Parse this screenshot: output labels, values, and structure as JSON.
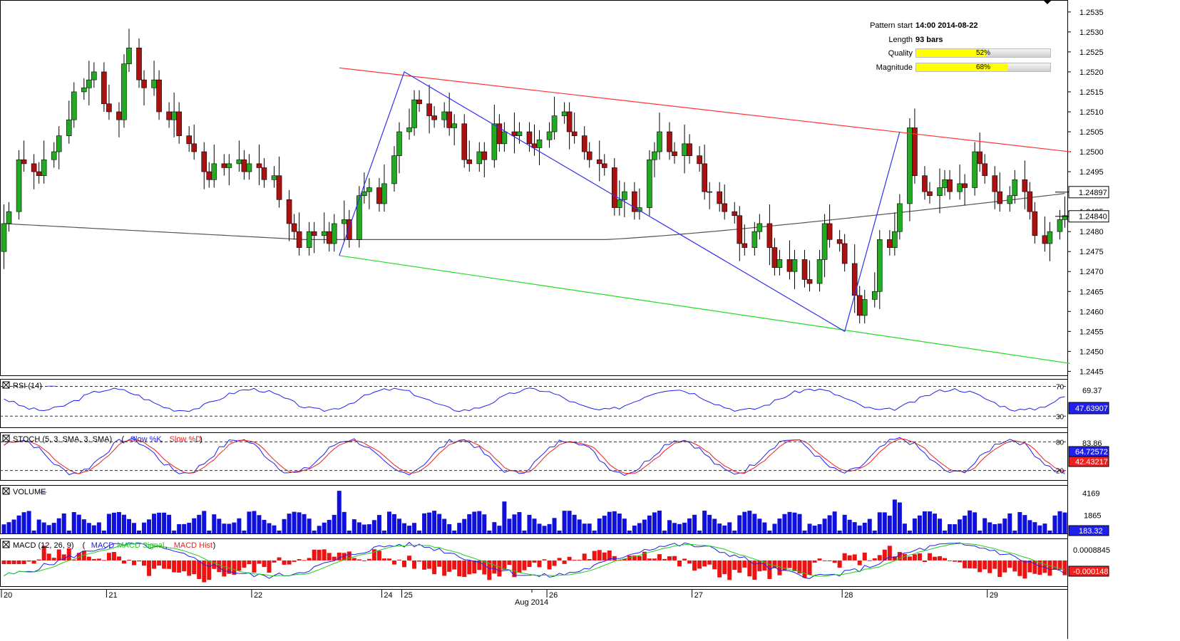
{
  "pattern_info": {
    "start_label": "Pattern start",
    "start_value": "14:00 2014-08-22",
    "length_label": "Length",
    "length_value": "93 bars",
    "quality_label": "Quality",
    "quality_text": "52%",
    "quality_value": 0.52,
    "magnitude_label": "Magnitude",
    "magnitude_text": "68%",
    "magnitude_value": 0.68
  },
  "x_axis": {
    "day_labels": [
      {
        "label": "20",
        "bar": 0
      },
      {
        "label": "21",
        "bar": 21
      },
      {
        "label": "22",
        "bar": 50
      },
      {
        "label": "24",
        "bar": 76
      },
      {
        "label": "25",
        "bar": 80
      },
      {
        "label": "26",
        "bar": 109
      },
      {
        "label": "27",
        "bar": 138
      },
      {
        "label": "28",
        "bar": 168
      },
      {
        "label": "29",
        "bar": 197
      }
    ],
    "month_label": "Aug 2014",
    "month_bar": 106
  },
  "chart_data": [
    {
      "type": "candlestick",
      "name": "price",
      "y_ticks": [
        "1.2535",
        "1.2530",
        "1.2525",
        "1.2520",
        "1.2515",
        "1.2510",
        "1.2505",
        "1.2500",
        "1.2495",
        "1.2490",
        "1.2485",
        "1.2480",
        "1.2475",
        "1.2470",
        "1.2465",
        "1.2460",
        "1.2455",
        "1.2450",
        "1.2445"
      ],
      "ylim": [
        1.2444,
        1.2538
      ],
      "current_price": "1.24840",
      "moving_average_label": "1.24897",
      "closes": [
        1.2482,
        1.2485,
        1.2498,
        1.2497,
        1.2495,
        1.2494,
        1.2498,
        1.25,
        1.2504,
        1.2508,
        1.2515,
        1.2516,
        1.2518,
        1.252,
        1.2512,
        1.251,
        1.2508,
        1.2522,
        1.2526,
        1.2518,
        1.2516,
        1.2518,
        1.251,
        1.2508,
        1.251,
        1.2504,
        1.2502,
        1.25,
        1.2495,
        1.2493,
        1.2497,
        1.2496,
        1.2497,
        1.2498,
        1.2495,
        1.2497,
        1.2496,
        1.2493,
        1.2494,
        1.2488,
        1.2482,
        1.248,
        1.2476,
        1.248,
        1.2479,
        1.248,
        1.2477,
        1.2482,
        1.2483,
        1.2478,
        1.2489,
        1.249,
        1.2491,
        1.2487,
        1.2492,
        1.2499,
        1.2505,
        1.2506,
        1.2513,
        1.2512,
        1.2509,
        1.2508,
        1.251,
        1.2506,
        1.2507,
        1.2498,
        1.2497,
        1.25,
        1.2498,
        1.2507,
        1.2502,
        1.2505,
        1.2504,
        1.2505,
        1.2502,
        1.2501,
        1.2503,
        1.2505,
        1.2509,
        1.251,
        1.2505,
        1.2504,
        1.25,
        1.2498,
        1.2497,
        1.2496,
        1.2486,
        1.2488,
        1.249,
        1.2485,
        1.2486,
        1.2498,
        1.25,
        1.2505,
        1.25,
        1.2499,
        1.2502,
        1.2499,
        1.2497,
        1.249,
        1.249,
        1.2487,
        1.2485,
        1.2484,
        1.2477,
        1.2476,
        1.248,
        1.2482,
        1.2476,
        1.2471,
        1.2473,
        1.247,
        1.2473,
        1.2468,
        1.2467,
        1.2473,
        1.2482,
        1.2478,
        1.2477,
        1.2472,
        1.2464,
        1.2459,
        1.2463,
        1.2465,
        1.2478,
        1.2476,
        1.248,
        1.2487,
        1.2506,
        1.2494,
        1.249,
        1.2489,
        1.2491,
        1.2493,
        1.249,
        1.2492,
        1.2491,
        1.25,
        1.2497,
        1.2494,
        1.249,
        1.2487,
        1.2489,
        1.2493,
        1.249,
        1.2485,
        1.2479,
        1.2477,
        1.248,
        1.2483,
        1.2484
      ],
      "opens": [
        1.2475,
        1.2482,
        1.2485,
        1.2498,
        1.2497,
        1.2495,
        1.2494,
        1.2498,
        1.25,
        1.2504,
        1.2508,
        1.2515,
        1.2516,
        1.2518,
        1.252,
        1.2512,
        1.251,
        1.2508,
        1.2522,
        1.2526,
        1.2518,
        1.2516,
        1.2518,
        1.251,
        1.2508,
        1.251,
        1.2504,
        1.2502,
        1.25,
        1.2495,
        1.2493,
        1.2497,
        1.2496,
        1.2497,
        1.2498,
        1.2495,
        1.2497,
        1.2496,
        1.2493,
        1.2494,
        1.2488,
        1.2482,
        1.248,
        1.2476,
        1.248,
        1.2479,
        1.248,
        1.2477,
        1.2482,
        1.2483,
        1.2478,
        1.2489,
        1.249,
        1.2491,
        1.2487,
        1.2492,
        1.2499,
        1.2505,
        1.2506,
        1.2513,
        1.2512,
        1.2509,
        1.2508,
        1.251,
        1.2506,
        1.2507,
        1.2498,
        1.2497,
        1.25,
        1.2498,
        1.2507,
        1.2502,
        1.2505,
        1.2504,
        1.2505,
        1.2502,
        1.2501,
        1.2503,
        1.2505,
        1.2509,
        1.251,
        1.2505,
        1.2504,
        1.25,
        1.2498,
        1.2497,
        1.2496,
        1.2486,
        1.2488,
        1.249,
        1.2485,
        1.2486,
        1.2498,
        1.25,
        1.2505,
        1.25,
        1.2499,
        1.2502,
        1.2499,
        1.2497,
        1.249,
        1.249,
        1.2487,
        1.2485,
        1.2484,
        1.2477,
        1.2476,
        1.248,
        1.2482,
        1.2476,
        1.2471,
        1.2473,
        1.247,
        1.2473,
        1.2468,
        1.2467,
        1.2473,
        1.2482,
        1.2478,
        1.2477,
        1.2472,
        1.2464,
        1.2459,
        1.2463,
        1.2465,
        1.2478,
        1.2476,
        1.248,
        1.2487,
        1.2506,
        1.2494,
        1.249,
        1.2489,
        1.2491,
        1.2493,
        1.249,
        1.2492,
        1.2491,
        1.25,
        1.2497,
        1.2494,
        1.249,
        1.2487,
        1.2489,
        1.2493,
        1.249,
        1.2485,
        1.2479,
        1.2477,
        1.248,
        1.2483
      ],
      "highs_above_body": 0.0004,
      "lows_below_body": 0.0004,
      "moving_average": {
        "start": 1.2482,
        "mid": 1.2478,
        "end": 1.24897
      },
      "channel_upper": {
        "from_bar": 67,
        "from_value": 1.2521,
        "to_bar": 213,
        "to_value": 1.25,
        "color": "#ff3333"
      },
      "channel_lower": {
        "from_bar": 67,
        "from_value": 1.2474,
        "to_bar": 213,
        "to_value": 1.2447,
        "color": "#22dd22"
      },
      "pattern_path": {
        "points": [
          [
            67,
            1.2474
          ],
          [
            80,
            1.252
          ],
          [
            168,
            1.2455
          ],
          [
            179,
            1.2505
          ]
        ],
        "color": "#3030ee"
      }
    },
    {
      "type": "line",
      "name": "RSI (14)",
      "levels": [
        "70",
        "30"
      ],
      "ylim": [
        15,
        80
      ],
      "right_labels": [
        "69.37",
        "47.63907"
      ],
      "level_values": [
        70,
        30
      ],
      "values_range": [
        32,
        72
      ]
    },
    {
      "type": "line",
      "name": "STOCH (5, 3, SMA, 3, SMA)",
      "series": [
        {
          "name": "Slow %K",
          "color": "#2020ee"
        },
        {
          "name": "Slow %D",
          "color": "#ee2020"
        }
      ],
      "levels": [
        "80",
        "20"
      ],
      "level_values": [
        80,
        20
      ],
      "right_labels": [
        "83.86",
        "64.72572",
        "42.43217"
      ],
      "ylim": [
        0,
        100
      ]
    },
    {
      "type": "bar",
      "name": "VOLUME",
      "right_labels": [
        "4169",
        "1865",
        "183.32"
      ],
      "ylim": [
        0,
        5000
      ]
    },
    {
      "type": "line",
      "name": "MACD (12, 26, 9)",
      "series": [
        {
          "name": "MACD",
          "color": "#2020ee"
        },
        {
          "name": "MACD Signal",
          "color": "#22cc22"
        },
        {
          "name": "MACD Hist",
          "color": "#ee2020"
        }
      ],
      "right_labels": [
        "0.0008845",
        "-0.000148"
      ],
      "ylim": [
        -0.0014,
        0.0012
      ]
    }
  ],
  "colors": {
    "bull": "#22aa22",
    "bear": "#aa1111",
    "grid_dash": "#555555",
    "panel_border": "#000000"
  }
}
